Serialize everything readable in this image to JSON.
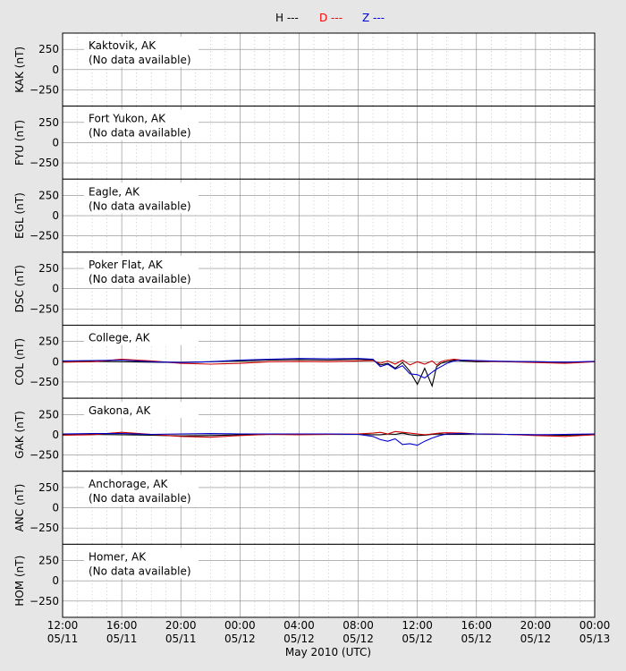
{
  "legend": [
    {
      "label": "H ---",
      "color": "#000000"
    },
    {
      "label": "D ---",
      "color": "#ff0000"
    },
    {
      "label": "Z ---",
      "color": "#0000cc"
    }
  ],
  "xaxis": {
    "label": "May 2010 (UTC)",
    "ticks": [
      {
        "time": "12:00",
        "date": "05/11"
      },
      {
        "time": "16:00",
        "date": "05/11"
      },
      {
        "time": "20:00",
        "date": "05/11"
      },
      {
        "time": "00:00",
        "date": "05/12"
      },
      {
        "time": "04:00",
        "date": "05/12"
      },
      {
        "time": "08:00",
        "date": "05/12"
      },
      {
        "time": "12:00",
        "date": "05/12"
      },
      {
        "time": "16:00",
        "date": "05/12"
      },
      {
        "time": "20:00",
        "date": "05/12"
      },
      {
        "time": "00:00",
        "date": "05/13"
      }
    ]
  },
  "chart_data": [
    {
      "type": "line",
      "ylabel": "KAK (nT)",
      "station": "Kaktovik, AK",
      "note": "(No data available)",
      "ylim": [
        -450,
        450
      ],
      "yticks": [
        250,
        0,
        -250
      ],
      "series": []
    },
    {
      "type": "line",
      "ylabel": "FYU (nT)",
      "station": "Fort Yukon, AK",
      "note": "(No data available)",
      "ylim": [
        -450,
        450
      ],
      "yticks": [
        250,
        0,
        -250
      ],
      "series": []
    },
    {
      "type": "line",
      "ylabel": "EGL (nT)",
      "station": "Eagle, AK",
      "note": "(No data available)",
      "ylim": [
        -450,
        450
      ],
      "yticks": [
        250,
        0,
        -250
      ],
      "series": []
    },
    {
      "type": "line",
      "ylabel": "DSC (nT)",
      "station": "Poker Flat, AK",
      "note": "(No data available)",
      "ylim": [
        -450,
        450
      ],
      "yticks": [
        250,
        0,
        -250
      ],
      "series": []
    },
    {
      "type": "line",
      "ylabel": "COL (nT)",
      "station": "College, AK",
      "note": "",
      "ylim": [
        -450,
        450
      ],
      "yticks": [
        250,
        0,
        -250
      ],
      "x_hours": [
        0,
        2,
        4,
        6,
        8,
        10,
        12,
        14,
        16,
        18,
        20,
        21,
        21.5,
        22,
        22.5,
        23,
        23.5,
        24,
        24.5,
        25,
        25.3,
        25.6,
        26,
        26.5,
        27,
        28,
        30,
        32,
        34,
        36
      ],
      "series": [
        {
          "color": "#000000",
          "values": [
            0,
            5,
            0,
            -5,
            -10,
            0,
            10,
            20,
            25,
            20,
            30,
            20,
            -40,
            -20,
            -80,
            -10,
            -120,
            -280,
            -80,
            -300,
            -60,
            -20,
            0,
            20,
            10,
            0,
            5,
            0,
            -5,
            0
          ]
        },
        {
          "color": "#cc0000",
          "values": [
            -5,
            0,
            30,
            10,
            -20,
            -30,
            -20,
            0,
            5,
            0,
            10,
            15,
            -20,
            10,
            -30,
            20,
            -40,
            0,
            -30,
            10,
            -40,
            0,
            20,
            30,
            20,
            10,
            0,
            -10,
            -20,
            0
          ]
        },
        {
          "color": "#0000cc",
          "values": [
            10,
            15,
            20,
            0,
            -10,
            0,
            20,
            30,
            40,
            35,
            40,
            30,
            -60,
            -30,
            -90,
            -50,
            -150,
            -160,
            -200,
            -130,
            -90,
            -60,
            -20,
            10,
            20,
            15,
            5,
            0,
            -5,
            5
          ]
        }
      ]
    },
    {
      "type": "line",
      "ylabel": "GAK (nT)",
      "station": "Gakona, AK",
      "note": "",
      "ylim": [
        -450,
        450
      ],
      "yticks": [
        250,
        0,
        -250
      ],
      "x_hours": [
        0,
        2,
        4,
        6,
        8,
        10,
        12,
        14,
        16,
        18,
        20,
        21,
        21.5,
        22,
        22.5,
        23,
        23.5,
        24,
        24.5,
        25,
        25.5,
        26,
        27,
        28,
        30,
        32,
        34,
        36
      ],
      "series": [
        {
          "color": "#000000",
          "values": [
            0,
            5,
            0,
            -5,
            -15,
            -10,
            0,
            5,
            5,
            5,
            5,
            0,
            0,
            10,
            5,
            20,
            0,
            -10,
            -5,
            5,
            10,
            5,
            5,
            10,
            5,
            0,
            -5,
            0
          ]
        },
        {
          "color": "#cc0000",
          "values": [
            -5,
            0,
            30,
            5,
            -20,
            -30,
            -10,
            5,
            0,
            5,
            10,
            20,
            30,
            10,
            40,
            30,
            20,
            10,
            0,
            10,
            20,
            25,
            20,
            10,
            5,
            -10,
            -20,
            0
          ]
        },
        {
          "color": "#0000cc",
          "values": [
            10,
            15,
            15,
            5,
            10,
            15,
            10,
            10,
            10,
            10,
            5,
            -20,
            -60,
            -80,
            -50,
            -120,
            -110,
            -130,
            -80,
            -40,
            -10,
            10,
            15,
            10,
            5,
            0,
            5,
            10
          ]
        }
      ]
    },
    {
      "type": "line",
      "ylabel": "ANC (nT)",
      "station": "Anchorage, AK",
      "note": "(No data available)",
      "ylim": [
        -450,
        450
      ],
      "yticks": [
        250,
        0,
        -250
      ],
      "series": []
    },
    {
      "type": "line",
      "ylabel": "HOM (nT)",
      "station": "Homer, AK",
      "note": "(No data available)",
      "ylim": [
        -450,
        450
      ],
      "yticks": [
        250,
        0,
        -250
      ],
      "series": []
    }
  ]
}
